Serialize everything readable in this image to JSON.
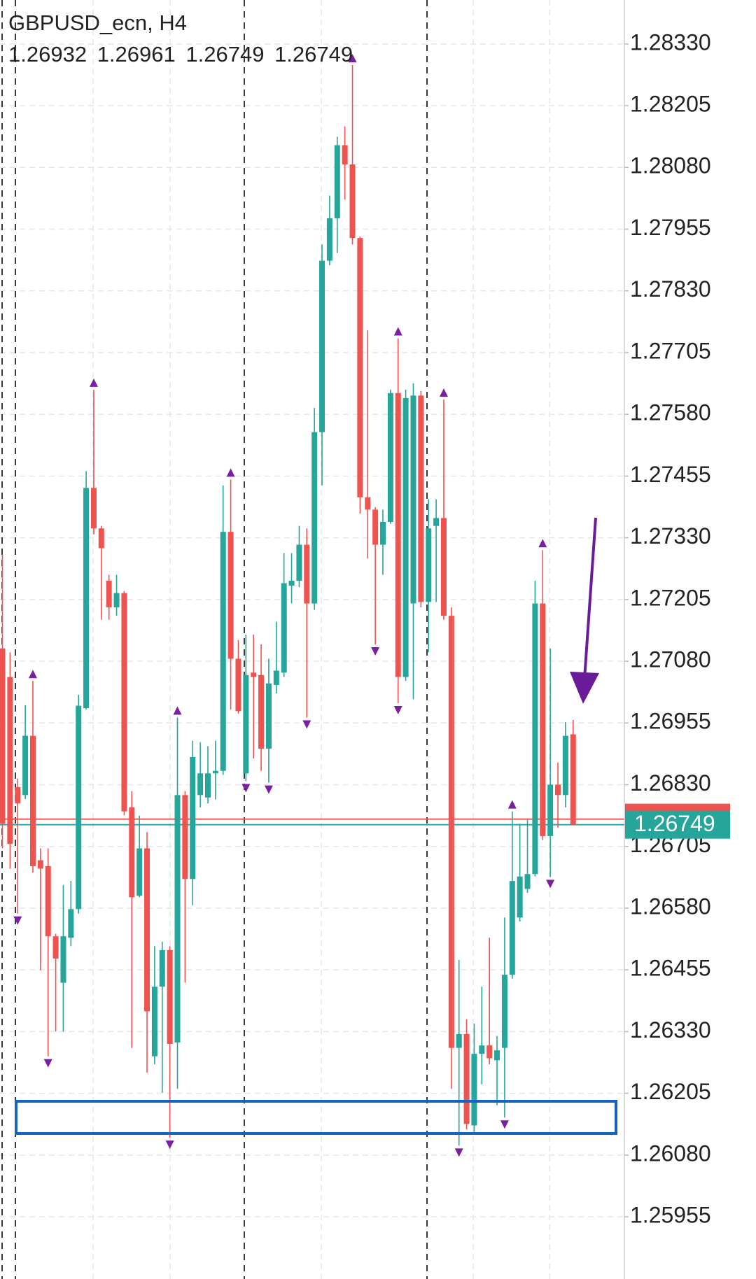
{
  "chart_data": {
    "type": "candlestick",
    "title": "GBPUSD_ecn, H4",
    "up_color": "#26a69a",
    "down_color": "#ef5350",
    "fractal_color": "#7b1fa2",
    "grid": true,
    "ylim": [
      1.25829,
      1.28419
    ],
    "yticks": [
      {
        "value": 1.2833,
        "label": "1.28330"
      },
      1.28205,
      {
        "value": 1.2808,
        "label": "1.28080"
      },
      1.27955,
      {
        "value": 1.2783,
        "label": "1.27830"
      },
      1.27705,
      {
        "value": 1.2758,
        "label": "1.27580"
      },
      1.27455,
      {
        "value": 1.2733,
        "label": "1.27330"
      },
      1.27205,
      {
        "value": 1.2708,
        "label": "1.27080"
      },
      1.26955,
      {
        "value": 1.2683,
        "label": "1.26830"
      },
      1.26705,
      {
        "value": 1.2658,
        "label": "1.26580"
      },
      1.26455,
      {
        "value": 1.2633,
        "label": "1.26330"
      },
      1.26205,
      {
        "value": 1.2608,
        "label": "1.26080"
      },
      1.25955
    ],
    "open": [
      1.27106,
      1.27048,
      1.26825,
      1.26809,
      1.26929,
      1.26677,
      1.26665,
      1.26523,
      1.26429,
      1.2652,
      1.26578,
      1.26985,
      1.27431,
      1.27349,
      1.27243,
      1.27189,
      1.27218,
      1.26784,
      1.26605,
      1.26701,
      1.2628,
      1.26421,
      1.26495,
      1.26308,
      1.26809,
      1.26639,
      1.26809,
      1.26804,
      1.26853,
      1.26858,
      1.27342,
      1.27085,
      1.26853,
      1.27057,
      1.27052,
      1.26903,
      1.27032,
      1.27057,
      1.27233,
      1.27243,
      1.27316,
      1.27197,
      1.27544,
      1.27891,
      1.27977,
      1.28125,
      1.28086,
      1.27937,
      1.27412,
      1.27387,
      1.27316,
      1.27362,
      1.27623,
      1.27048,
      1.27197,
      1.27618,
      1.272,
      1.27354,
      1.2737,
      1.27172,
      1.26297,
      1.26325,
      1.2614,
      1.26285,
      1.26302,
      1.26272,
      1.26297,
      1.26445,
      1.26561,
      1.26619,
      1.26649,
      1.27197,
      1.26726,
      1.2683,
      1.26809,
      1.26932
    ],
    "high": [
      1.27296,
      1.27098,
      1.26842,
      1.26991,
      1.2704,
      1.26701,
      1.26701,
      1.26528,
      1.26627,
      1.26635,
      1.27012,
      1.27465,
      1.2763,
      1.27354,
      1.27255,
      1.27255,
      1.27222,
      1.26817,
      1.26767,
      1.26734,
      1.26503,
      1.26512,
      1.26503,
      1.26966,
      1.26817,
      1.26919,
      1.26916,
      1.26908,
      1.26919,
      1.27436,
      1.27448,
      1.27123,
      1.27134,
      1.27134,
      1.27114,
      1.27085,
      1.2716,
      1.27299,
      1.27299,
      1.27354,
      1.27349,
      1.27593,
      1.27924,
      1.28023,
      1.28142,
      1.28163,
      1.28287,
      1.2794,
      1.2775,
      1.27392,
      1.27387,
      1.2763,
      1.27734,
      1.2763,
      1.27643,
      1.27627,
      1.27408,
      1.27408,
      1.2761,
      1.27189,
      1.26475,
      1.26355,
      1.26346,
      1.26421,
      1.2652,
      1.26321,
      1.26561,
      1.26776,
      1.26751,
      1.26759,
      1.27243,
      1.27305,
      1.27106,
      1.26875,
      1.26957,
      1.26961
    ],
    "low": [
      1.26701,
      1.2666,
      1.26569,
      1.26801,
      1.26652,
      1.26454,
      1.2628,
      1.2633,
      1.2633,
      1.26503,
      1.26569,
      1.26982,
      1.27337,
      1.27164,
      1.27164,
      1.27172,
      1.26768,
      1.26297,
      1.26602,
      1.26247,
      1.26264,
      1.26206,
      1.26115,
      1.26214,
      1.26429,
      1.26586,
      1.26784,
      1.26792,
      1.268,
      1.2685,
      1.26982,
      1.26974,
      1.26837,
      1.26883,
      1.26858,
      1.26834,
      1.27015,
      1.27048,
      1.27197,
      1.2723,
      1.26966,
      1.27184,
      1.27436,
      1.27882,
      1.27907,
      1.28015,
      1.27924,
      1.27379,
      1.27288,
      1.27114,
      1.27255,
      1.27358,
      1.26995,
      1.2704,
      1.27003,
      1.27189,
      1.27098,
      1.272,
      1.27164,
      1.26214,
      1.26099,
      1.26132,
      1.26127,
      1.26223,
      1.26264,
      1.26181,
      1.26156,
      1.26437,
      1.26553,
      1.26611,
      1.26644,
      1.26718,
      1.26643,
      1.26743,
      1.26784,
      1.26749
    ],
    "close": [
      1.26751,
      1.2671,
      1.26792,
      1.26929,
      1.26665,
      1.2666,
      1.26523,
      1.26478,
      1.26523,
      1.26578,
      1.2699,
      1.27431,
      1.27349,
      1.27309,
      1.27189,
      1.27218,
      1.26776,
      1.26602,
      1.26701,
      1.26371,
      1.26421,
      1.26495,
      1.26305,
      1.26809,
      1.26639,
      1.26886,
      1.26853,
      1.26853,
      1.26858,
      1.27342,
      1.27085,
      1.26979,
      1.27052,
      1.27048,
      1.26903,
      1.27035,
      1.27061,
      1.27238,
      1.27243,
      1.27316,
      1.27197,
      1.27544,
      1.27891,
      1.27977,
      1.28125,
      1.28086,
      1.27937,
      1.27412,
      1.27387,
      1.27316,
      1.27362,
      1.27623,
      1.27048,
      1.27613,
      1.27618,
      1.272,
      1.27349,
      1.2737,
      1.27172,
      1.26297,
      1.26325,
      1.26143,
      1.26285,
      1.26302,
      1.26276,
      1.26292,
      1.26445,
      1.26635,
      1.26644,
      1.26649,
      1.27197,
      1.26726,
      1.2683,
      1.26809,
      1.26929,
      1.26749
    ]
  }
}
